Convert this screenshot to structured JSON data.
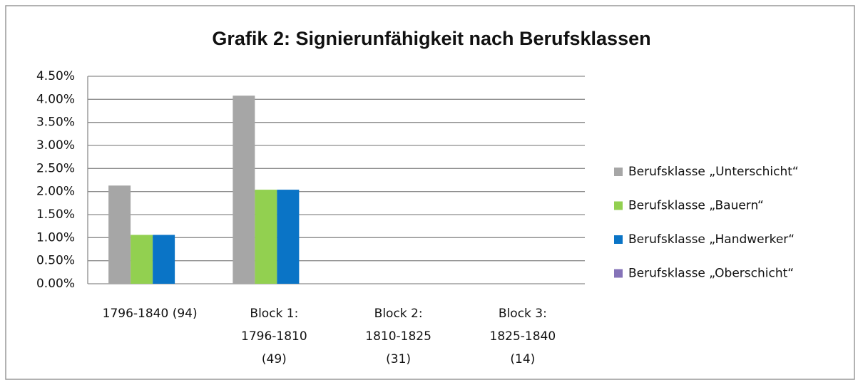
{
  "chart_data": {
    "type": "bar",
    "title": "Grafik 2: Signierunfähigkeit nach Berufsklassen",
    "categories": [
      [
        "1796-1840 (94)"
      ],
      [
        "Block 1:",
        "1796-1810",
        "(49)"
      ],
      [
        "Block 2:",
        "1810-1825",
        "(31)"
      ],
      [
        "Block 3:",
        "1825-1840",
        "(14)"
      ]
    ],
    "series": [
      {
        "name": "Berufsklasse „Unterschicht“",
        "color": "#a6a6a6",
        "values": [
          2.13,
          4.08,
          0,
          0
        ]
      },
      {
        "name": "Berufsklasse „Bauern“",
        "color": "#92d050",
        "values": [
          1.06,
          2.04,
          0,
          0
        ]
      },
      {
        "name": "Berufsklasse „Handwerker“",
        "color": "#0a74c6",
        "values": [
          1.06,
          2.04,
          0,
          0
        ]
      },
      {
        "name": "Berufsklasse „Oberschicht“",
        "color": "#8573b8",
        "values": [
          0,
          0,
          0,
          0
        ]
      }
    ],
    "ylim": [
      0,
      4.5
    ],
    "yticks": [
      {
        "value": 0,
        "label": "0.00%"
      },
      {
        "value": 0.5,
        "label": "0.50%"
      },
      {
        "value": 1,
        "label": "1.00%"
      },
      {
        "value": 1.5,
        "label": "1.50%"
      },
      {
        "value": 2,
        "label": "2.00%"
      },
      {
        "value": 2.5,
        "label": "2.50%"
      },
      {
        "value": 3,
        "label": "3.00%"
      },
      {
        "value": 3.5,
        "label": "3.50%"
      },
      {
        "value": 4,
        "label": "4.00%"
      },
      {
        "value": 4.5,
        "label": "4.50%"
      }
    ],
    "grid": true,
    "legend": "right"
  }
}
